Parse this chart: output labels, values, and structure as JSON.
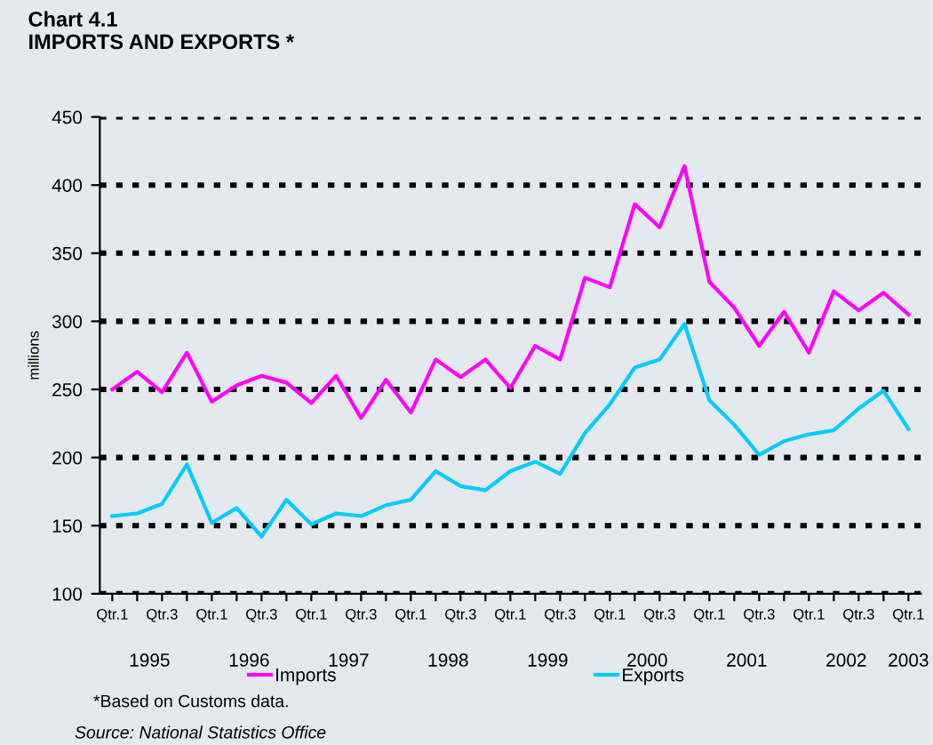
{
  "chart_data": {
    "type": "line",
    "title": "Chart 4.1\nIMPORTS AND EXPORTS *",
    "ylabel": "millions",
    "categories": [
      "Qtr.1",
      null,
      "Qtr.3",
      null,
      "Qtr.1",
      null,
      "Qtr.3",
      null,
      "Qtr.1",
      null,
      "Qtr.3",
      null,
      "Qtr.1",
      null,
      "Qtr.3",
      null,
      "Qtr.1",
      null,
      "Qtr.3",
      null,
      "Qtr.1",
      null,
      "Qtr.3",
      null,
      "Qtr.1",
      null,
      "Qtr.3",
      null,
      "Qtr.1",
      null,
      "Qtr.3",
      null,
      "Qtr.1"
    ],
    "series": [
      {
        "name": "Imports",
        "color": "#ff00ff",
        "values": [
          250,
          263,
          248,
          277,
          241,
          253,
          260,
          255,
          240,
          260,
          229,
          257,
          233,
          272,
          259,
          272,
          251,
          282,
          272,
          332,
          325,
          386,
          369,
          414,
          329,
          310,
          282,
          307,
          277,
          322,
          308,
          321,
          305
        ]
      },
      {
        "name": "Exports",
        "color": "#00ccff",
        "values": [
          157,
          159,
          166,
          195,
          152,
          163,
          142,
          169,
          151,
          159,
          157,
          165,
          169,
          190,
          179,
          176,
          190,
          197,
          188,
          218,
          239,
          266,
          272,
          298,
          242,
          224,
          202,
          212,
          217,
          220,
          236,
          249,
          221
        ]
      }
    ],
    "ylim": [
      100,
      450
    ],
    "yticks": [
      100,
      150,
      200,
      250,
      300,
      350,
      400,
      450
    ],
    "grid": "y",
    "legend": "bottom",
    "marker": "none",
    "line_style": "solid",
    "annotations": [
      "1995",
      "1996",
      "1997",
      "1998",
      "1999",
      "2000",
      "2001",
      "2002",
      "2003",
      "*Based on Customs data.",
      "Source: National Statistics Office"
    ]
  }
}
